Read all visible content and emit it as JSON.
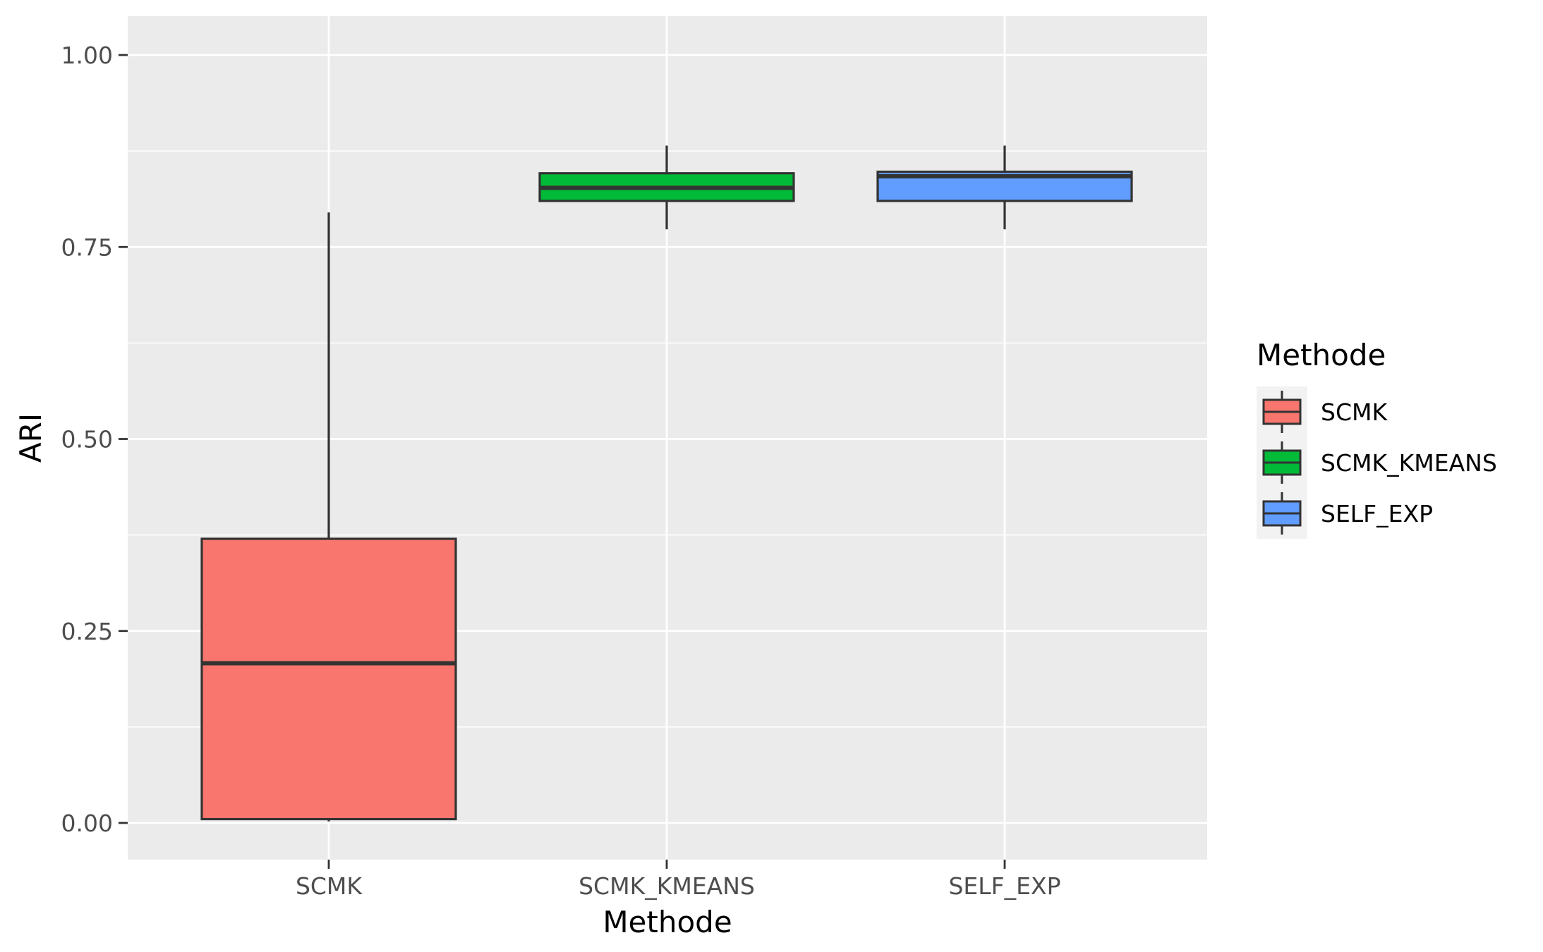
{
  "chart_data": {
    "type": "boxplot",
    "xlabel": "Methode",
    "ylabel": "ARI",
    "ylim": [
      -0.05,
      1.05
    ],
    "yticks": [
      "0.00",
      "0.25",
      "0.50",
      "0.75",
      "1.00"
    ],
    "grid": true,
    "legend": {
      "title": "Methode",
      "position": "right"
    },
    "categories": [
      "SCMK",
      "SCMK_KMEANS",
      "SELF_EXP"
    ],
    "series": [
      {
        "name": "SCMK",
        "color": "#F8766D",
        "min": 0.002,
        "q1": 0.005,
        "median": 0.208,
        "q3": 0.37,
        "max": 0.795
      },
      {
        "name": "SCMK_KMEANS",
        "color": "#00BA38",
        "min": 0.773,
        "q1": 0.81,
        "median": 0.827,
        "q3": 0.846,
        "max": 0.882
      },
      {
        "name": "SELF_EXP",
        "color": "#619CFF",
        "min": 0.773,
        "q1": 0.81,
        "median": 0.842,
        "q3": 0.848,
        "max": 0.882
      }
    ]
  }
}
